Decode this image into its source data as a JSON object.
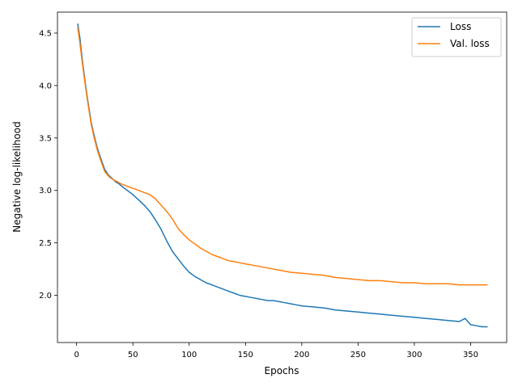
{
  "chart_data": {
    "type": "line",
    "title": "",
    "xlabel": "Epochs",
    "ylabel": "Negative log-likelihood",
    "xlim": [
      -17,
      382
    ],
    "ylim": [
      1.55,
      4.7
    ],
    "xticks": [
      0,
      50,
      100,
      150,
      200,
      250,
      300,
      350
    ],
    "yticks": [
      2.0,
      2.5,
      3.0,
      3.5,
      4.0,
      4.5
    ],
    "grid": false,
    "legend_position": "top-right",
    "series": [
      {
        "name": "Loss",
        "color": "#1f77b4",
        "x": [
          1,
          3,
          5,
          8,
          10,
          13,
          15,
          18,
          20,
          23,
          25,
          28,
          30,
          33,
          35,
          38,
          40,
          45,
          50,
          55,
          60,
          65,
          70,
          75,
          80,
          85,
          90,
          95,
          100,
          105,
          110,
          115,
          120,
          125,
          130,
          135,
          140,
          145,
          150,
          155,
          160,
          165,
          170,
          175,
          180,
          185,
          190,
          195,
          200,
          210,
          220,
          230,
          240,
          250,
          260,
          270,
          280,
          290,
          300,
          310,
          320,
          330,
          340,
          345,
          350,
          355,
          360,
          365
        ],
        "values": [
          4.59,
          4.45,
          4.25,
          4.0,
          3.85,
          3.65,
          3.55,
          3.42,
          3.35,
          3.26,
          3.2,
          3.15,
          3.13,
          3.1,
          3.08,
          3.06,
          3.04,
          3.0,
          2.96,
          2.91,
          2.86,
          2.8,
          2.72,
          2.63,
          2.52,
          2.42,
          2.35,
          2.28,
          2.22,
          2.18,
          2.15,
          2.12,
          2.1,
          2.08,
          2.06,
          2.04,
          2.02,
          2.0,
          1.99,
          1.98,
          1.97,
          1.96,
          1.95,
          1.95,
          1.94,
          1.93,
          1.92,
          1.91,
          1.9,
          1.89,
          1.88,
          1.86,
          1.85,
          1.84,
          1.83,
          1.82,
          1.81,
          1.8,
          1.79,
          1.78,
          1.77,
          1.76,
          1.75,
          1.78,
          1.72,
          1.71,
          1.7,
          1.7
        ]
      },
      {
        "name": "Val. loss",
        "color": "#ff7f0e",
        "x": [
          1,
          3,
          5,
          8,
          10,
          13,
          15,
          18,
          20,
          23,
          25,
          28,
          30,
          33,
          35,
          40,
          45,
          50,
          55,
          60,
          65,
          70,
          75,
          80,
          85,
          90,
          95,
          100,
          105,
          110,
          115,
          120,
          125,
          130,
          135,
          140,
          145,
          150,
          160,
          170,
          180,
          190,
          200,
          210,
          220,
          230,
          240,
          250,
          260,
          270,
          280,
          290,
          300,
          310,
          320,
          330,
          340,
          350,
          360,
          365
        ],
        "values": [
          4.56,
          4.4,
          4.22,
          3.98,
          3.83,
          3.63,
          3.53,
          3.4,
          3.33,
          3.24,
          3.18,
          3.14,
          3.12,
          3.1,
          3.09,
          3.06,
          3.04,
          3.02,
          3.0,
          2.98,
          2.96,
          2.92,
          2.86,
          2.8,
          2.73,
          2.64,
          2.58,
          2.53,
          2.49,
          2.45,
          2.42,
          2.39,
          2.37,
          2.35,
          2.33,
          2.32,
          2.31,
          2.3,
          2.28,
          2.26,
          2.24,
          2.22,
          2.21,
          2.2,
          2.19,
          2.17,
          2.16,
          2.15,
          2.14,
          2.14,
          2.13,
          2.12,
          2.12,
          2.11,
          2.11,
          2.11,
          2.1,
          2.1,
          2.1,
          2.1
        ]
      }
    ]
  }
}
